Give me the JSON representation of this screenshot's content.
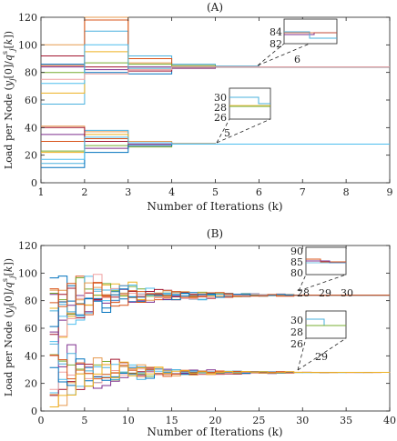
{
  "chart_data": [
    {
      "type": "line",
      "title": "(A)",
      "xlabel": "Number of Iterations (k)",
      "ylabel": "Load per Node (y_j[0]/q_j^s[k])",
      "xlim": [
        1,
        9
      ],
      "ylim": [
        0,
        120
      ],
      "xticks": [
        1,
        2,
        3,
        4,
        5,
        6,
        7,
        8,
        9
      ],
      "yticks": [
        0,
        20,
        40,
        60,
        80,
        100,
        120
      ],
      "grid": false,
      "step": true,
      "consensus": [
        84,
        28
      ],
      "series": [
        {
          "color": "#e69a4f",
          "values": [
            100,
            120,
            87,
            84,
            84.5,
            84,
            84,
            84,
            84
          ]
        },
        {
          "color": "#4ab0de",
          "values": [
            57,
            110,
            92,
            86,
            84.5,
            84,
            84,
            84,
            84
          ]
        },
        {
          "color": "#d95319",
          "values": [
            85,
            118,
            90,
            85,
            84,
            84,
            84,
            84,
            84
          ]
        },
        {
          "color": "#edb120",
          "values": [
            65,
            95,
            83,
            83,
            84,
            84,
            84,
            84,
            84
          ]
        },
        {
          "color": "#7e2f8e",
          "values": [
            84,
            82,
            84,
            83,
            84,
            84,
            84,
            84,
            84
          ]
        },
        {
          "color": "#77ac30",
          "values": [
            80,
            87,
            86,
            85,
            84,
            84,
            84,
            84,
            84
          ]
        },
        {
          "color": "#0072bd",
          "values": [
            86,
            80,
            79,
            84,
            84,
            84,
            84,
            84,
            84
          ]
        },
        {
          "color": "#a2142f",
          "values": [
            92,
            84,
            81,
            84,
            84,
            84,
            84,
            84,
            84
          ]
        },
        {
          "color": "#4dbeee",
          "values": [
            72,
            100,
            83,
            84,
            84,
            84,
            84,
            84,
            84
          ]
        },
        {
          "color": "#f0a0a0",
          "values": [
            75,
            79,
            82,
            84,
            84,
            84,
            84,
            84,
            84
          ]
        },
        {
          "color": "#e69a4f",
          "values": [
            41,
            37,
            30,
            28.5,
            28,
            28,
            28,
            28,
            28
          ]
        },
        {
          "color": "#4ab0de",
          "values": [
            14,
            38,
            29,
            28.2,
            28,
            28,
            28,
            28,
            28
          ]
        },
        {
          "color": "#d95319",
          "values": [
            30,
            32,
            27,
            28,
            28,
            28,
            28,
            28,
            28
          ]
        },
        {
          "color": "#edb120",
          "values": [
            22,
            35,
            28,
            28,
            28,
            28,
            28,
            28,
            28
          ]
        },
        {
          "color": "#7e2f8e",
          "values": [
            35,
            25,
            28,
            28,
            28,
            28,
            28,
            28,
            28
          ]
        },
        {
          "color": "#77ac30",
          "values": [
            23,
            27,
            26,
            28,
            28,
            28,
            28,
            28,
            28
          ]
        },
        {
          "color": "#0072bd",
          "values": [
            11,
            22,
            27,
            28,
            28,
            28,
            28,
            28,
            28
          ]
        },
        {
          "color": "#a2142f",
          "values": [
            40,
            30,
            29,
            28,
            28,
            28,
            28,
            28,
            28
          ]
        },
        {
          "color": "#4dbeee",
          "values": [
            17,
            33,
            29,
            28,
            28,
            28,
            28,
            28,
            28
          ]
        }
      ],
      "insets": [
        {
          "yticks": [
            "84",
            "82"
          ],
          "label": "6"
        },
        {
          "yticks": [
            "30",
            "28",
            "26"
          ],
          "label": "5"
        }
      ]
    },
    {
      "type": "line",
      "title": "(B)",
      "xlabel": "Number of Iterations (k)",
      "ylabel": "Load per Node (y_j[0]/q_j^s[k])",
      "xlim": [
        0,
        40
      ],
      "ylim": [
        0,
        120
      ],
      "xticks": [
        0,
        5,
        10,
        15,
        20,
        25,
        30,
        35,
        40
      ],
      "yticks": [
        0,
        20,
        40,
        60,
        80,
        100,
        120
      ],
      "grid": false,
      "step": true,
      "consensus": [
        84,
        28
      ],
      "upper_series_start": [
        99,
        86,
        70,
        85,
        84,
        62,
        72,
        85,
        66,
        58,
        80,
        96
      ],
      "lower_series_start": [
        42,
        28,
        22,
        10,
        13,
        36,
        23,
        31,
        26,
        18
      ],
      "insets": [
        {
          "yticks": [
            "90",
            "85",
            "80"
          ],
          "xticks": [
            "28",
            "29",
            "30"
          ]
        },
        {
          "yticks": [
            "30",
            "28",
            "26"
          ],
          "label": "29"
        }
      ]
    }
  ]
}
